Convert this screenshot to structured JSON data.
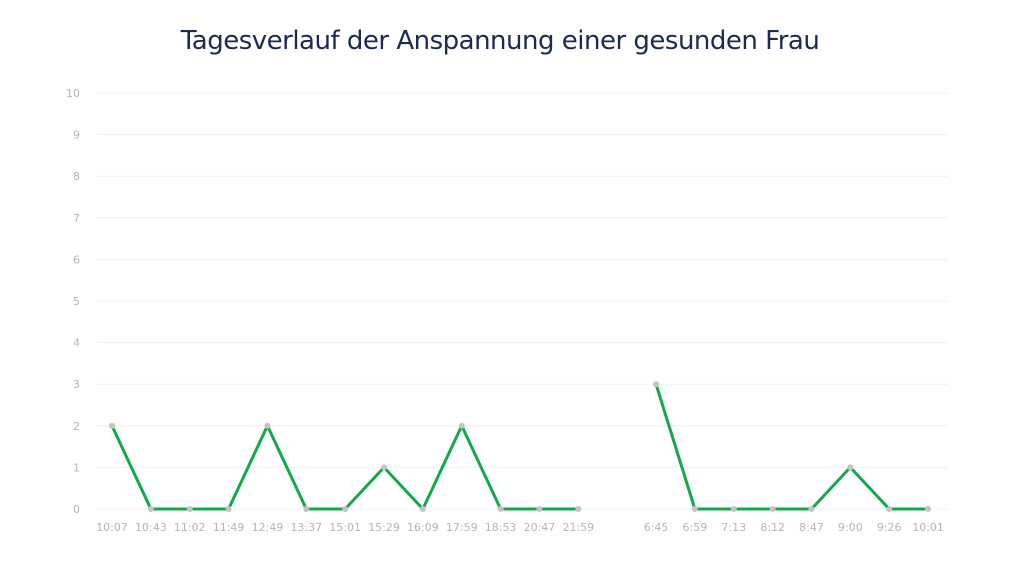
{
  "chart_data": {
    "type": "line",
    "title": "Tagesverlauf der Anspannung einer gesunden Frau",
    "xlabel": "",
    "ylabel": "",
    "categories": [
      "10:07",
      "10:43",
      "11:02",
      "11:49",
      "12:49",
      "13:37",
      "15:01",
      "15:29",
      "16:09",
      "17:59",
      "18:53",
      "20:47",
      "21:59",
      "",
      "6:45",
      "6:59",
      "7:13",
      "8:12",
      "8:47",
      "9:00",
      "9:26",
      "10:01"
    ],
    "series": [
      {
        "values": [
          2,
          0,
          0,
          0,
          2,
          0,
          0,
          1,
          0,
          2,
          0,
          0,
          0,
          null,
          3,
          0,
          0,
          0,
          0,
          1,
          0,
          0
        ]
      }
    ],
    "ylim": [
      0,
      10
    ],
    "yticks": [
      0,
      1,
      2,
      3,
      4,
      5,
      6,
      7,
      8,
      9,
      10
    ],
    "grid": true,
    "colors": {
      "line": "#13a84a",
      "marker": "#c4c4c4",
      "grid": "#f0f0f0"
    }
  }
}
